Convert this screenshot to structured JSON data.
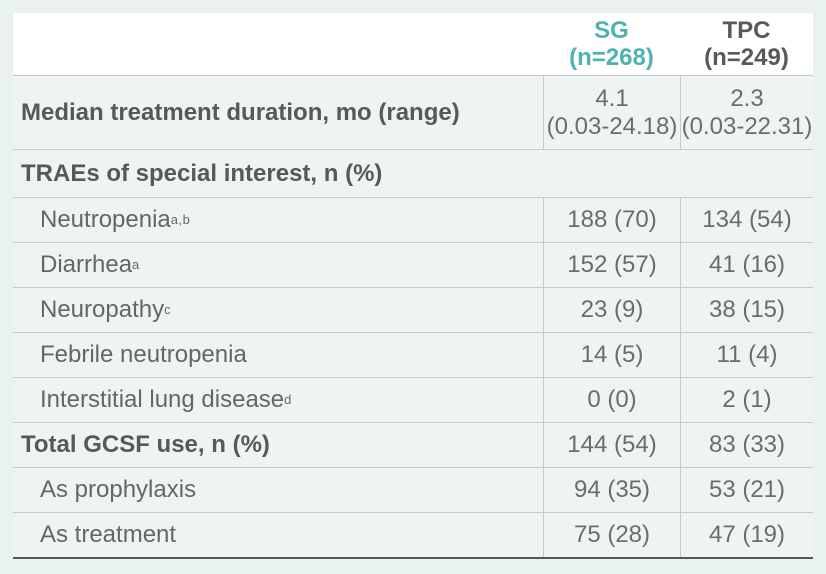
{
  "colors": {
    "accent_teal": "#4db3b0",
    "header_text": "#58595b",
    "bold_text": "#56585a",
    "body_text": "#646668",
    "value_text": "#6a6c6e",
    "grid_line": "#c5cbcd",
    "bottom_border": "#56595b",
    "page_bg": "#eaf2f1",
    "row_bg": "#eef4f4",
    "header_bg": "#ffffff"
  },
  "table": {
    "columns": [
      {
        "id": "sg",
        "line1": "SG",
        "line2": "(n=268)"
      },
      {
        "id": "tpc",
        "line1": "TPC",
        "line2": "(n=249)"
      }
    ],
    "rows": [
      {
        "kind": "twoline",
        "bold": true,
        "indent": false,
        "label": "Median treatment duration, mo (range)",
        "sup": "",
        "sg1": "4.1",
        "sg2": "(0.03-24.18)",
        "tpc1": "2.3",
        "tpc2": "(0.03-22.31)"
      },
      {
        "kind": "section",
        "bold": true,
        "indent": false,
        "label": "TRAEs of special interest, n (%)",
        "sup": ""
      },
      {
        "kind": "data",
        "bold": false,
        "indent": true,
        "label": "Neutropenia",
        "sup": "a,b",
        "sg": "188 (70)",
        "tpc": "134 (54)"
      },
      {
        "kind": "data",
        "bold": false,
        "indent": true,
        "label": "Diarrhea",
        "sup": "a",
        "sg": "152 (57)",
        "tpc": "41 (16)"
      },
      {
        "kind": "data",
        "bold": false,
        "indent": true,
        "label": "Neuropathy",
        "sup": "c",
        "sg": "23 (9)",
        "tpc": "38 (15)"
      },
      {
        "kind": "data",
        "bold": false,
        "indent": true,
        "label": "Febrile neutropenia",
        "sup": "",
        "sg": "14 (5)",
        "tpc": "11 (4)"
      },
      {
        "kind": "data",
        "bold": false,
        "indent": true,
        "label": "Interstitial lung disease",
        "sup": "d",
        "sg": "0 (0)",
        "tpc": "2 (1)"
      },
      {
        "kind": "data",
        "bold": true,
        "indent": false,
        "label": "Total GCSF use, n (%)",
        "sup": "",
        "sg": "144 (54)",
        "tpc": "83 (33)"
      },
      {
        "kind": "data",
        "bold": false,
        "indent": true,
        "label": "As prophylaxis",
        "sup": "",
        "sg": "94 (35)",
        "tpc": "53 (21)"
      },
      {
        "kind": "data",
        "bold": false,
        "indent": true,
        "label": "As treatment",
        "sup": "",
        "sg": "75 (28)",
        "tpc": "47 (19)"
      }
    ]
  }
}
